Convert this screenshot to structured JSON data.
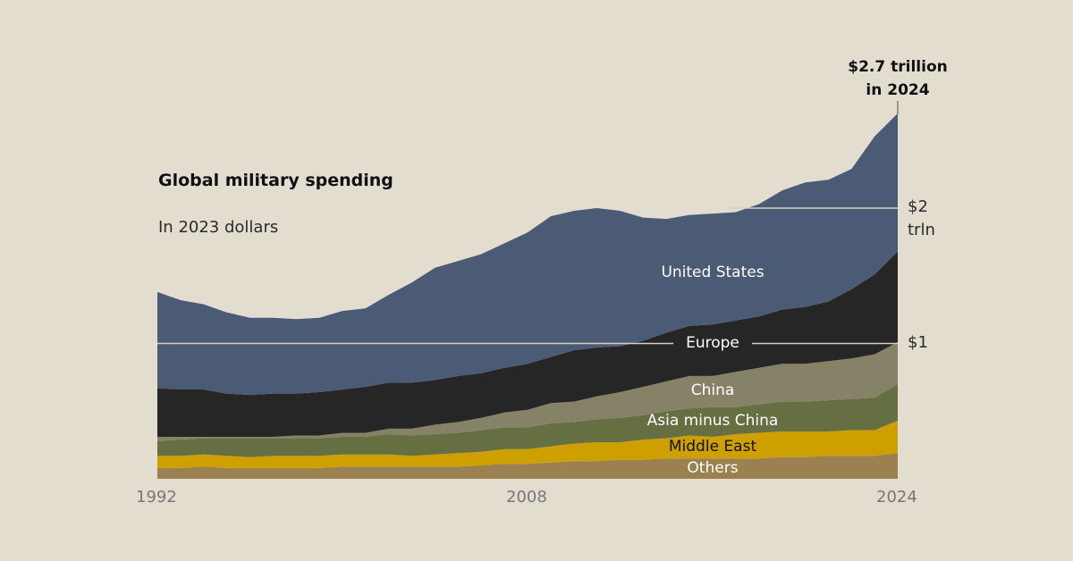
{
  "chart_data": {
    "type": "area",
    "stacked": true,
    "title": "Global military spending",
    "subtitle": "In 2023 dollars",
    "annotation": {
      "line1": "$2.7 trillion",
      "line2": "in 2024",
      "year": 2024
    },
    "xlabel": "",
    "ylabel": "",
    "x": [
      1992,
      1993,
      1994,
      1995,
      1996,
      1997,
      1998,
      1999,
      2000,
      2001,
      2002,
      2003,
      2004,
      2005,
      2006,
      2007,
      2008,
      2009,
      2010,
      2011,
      2012,
      2013,
      2014,
      2015,
      2016,
      2017,
      2018,
      2019,
      2020,
      2021,
      2022,
      2023,
      2024
    ],
    "x_ticks": [
      "1992",
      "2008",
      "2024"
    ],
    "y_ticks": [
      {
        "value": 1,
        "label": "$1",
        "sub": ""
      },
      {
        "value": 2,
        "label": "$2",
        "sub": "trln"
      }
    ],
    "ylim": [
      0,
      2.7
    ],
    "units": "trillion US$ (2023 dollars)",
    "series": [
      {
        "name": "Others",
        "color": "#9b8150",
        "label_color": "#ffffff",
        "values": [
          0.08,
          0.08,
          0.09,
          0.08,
          0.08,
          0.08,
          0.08,
          0.08,
          0.09,
          0.09,
          0.09,
          0.09,
          0.09,
          0.09,
          0.1,
          0.11,
          0.11,
          0.12,
          0.13,
          0.13,
          0.14,
          0.14,
          0.15,
          0.15,
          0.15,
          0.15,
          0.15,
          0.16,
          0.16,
          0.17,
          0.17,
          0.17,
          0.19
        ]
      },
      {
        "name": "Middle East",
        "color": "#cda000",
        "label_color": "#111111",
        "values": [
          0.09,
          0.09,
          0.09,
          0.09,
          0.08,
          0.09,
          0.09,
          0.09,
          0.09,
          0.09,
          0.09,
          0.08,
          0.09,
          0.1,
          0.1,
          0.11,
          0.11,
          0.12,
          0.13,
          0.14,
          0.13,
          0.15,
          0.15,
          0.17,
          0.16,
          0.18,
          0.19,
          0.19,
          0.19,
          0.18,
          0.19,
          0.19,
          0.24
        ]
      },
      {
        "name": "Asia minus China",
        "color": "#666f41",
        "label_color": "#ffffff",
        "values": [
          0.11,
          0.12,
          0.12,
          0.13,
          0.14,
          0.13,
          0.13,
          0.13,
          0.13,
          0.13,
          0.15,
          0.15,
          0.15,
          0.15,
          0.16,
          0.16,
          0.16,
          0.17,
          0.16,
          0.17,
          0.18,
          0.18,
          0.2,
          0.2,
          0.22,
          0.2,
          0.21,
          0.22,
          0.22,
          0.23,
          0.23,
          0.24,
          0.27
        ]
      },
      {
        "name": "China",
        "color": "#858267",
        "label_color": "#ffffff",
        "values": [
          0.03,
          0.02,
          0.01,
          0.01,
          0.01,
          0.01,
          0.02,
          0.02,
          0.03,
          0.03,
          0.04,
          0.05,
          0.07,
          0.08,
          0.09,
          0.11,
          0.13,
          0.15,
          0.15,
          0.17,
          0.19,
          0.21,
          0.22,
          0.24,
          0.23,
          0.26,
          0.27,
          0.28,
          0.28,
          0.29,
          0.3,
          0.32,
          0.31
        ]
      },
      {
        "name": "Europe",
        "color": "#262626",
        "label_color": "#ffffff",
        "values": [
          0.36,
          0.35,
          0.35,
          0.32,
          0.31,
          0.32,
          0.31,
          0.32,
          0.32,
          0.34,
          0.34,
          0.34,
          0.33,
          0.34,
          0.33,
          0.33,
          0.34,
          0.34,
          0.38,
          0.36,
          0.34,
          0.34,
          0.36,
          0.37,
          0.38,
          0.38,
          0.38,
          0.4,
          0.42,
          0.44,
          0.51,
          0.59,
          0.67
        ]
      },
      {
        "name": "United States",
        "color": "#4b5b76",
        "label_color": "#ffffff",
        "values": [
          0.71,
          0.66,
          0.63,
          0.6,
          0.57,
          0.56,
          0.55,
          0.55,
          0.58,
          0.58,
          0.65,
          0.74,
          0.83,
          0.85,
          0.88,
          0.92,
          0.97,
          1.04,
          1.03,
          1.03,
          1.0,
          0.91,
          0.84,
          0.82,
          0.82,
          0.8,
          0.83,
          0.88,
          0.92,
          0.9,
          0.89,
          1.02,
          1.02
        ]
      }
    ]
  }
}
